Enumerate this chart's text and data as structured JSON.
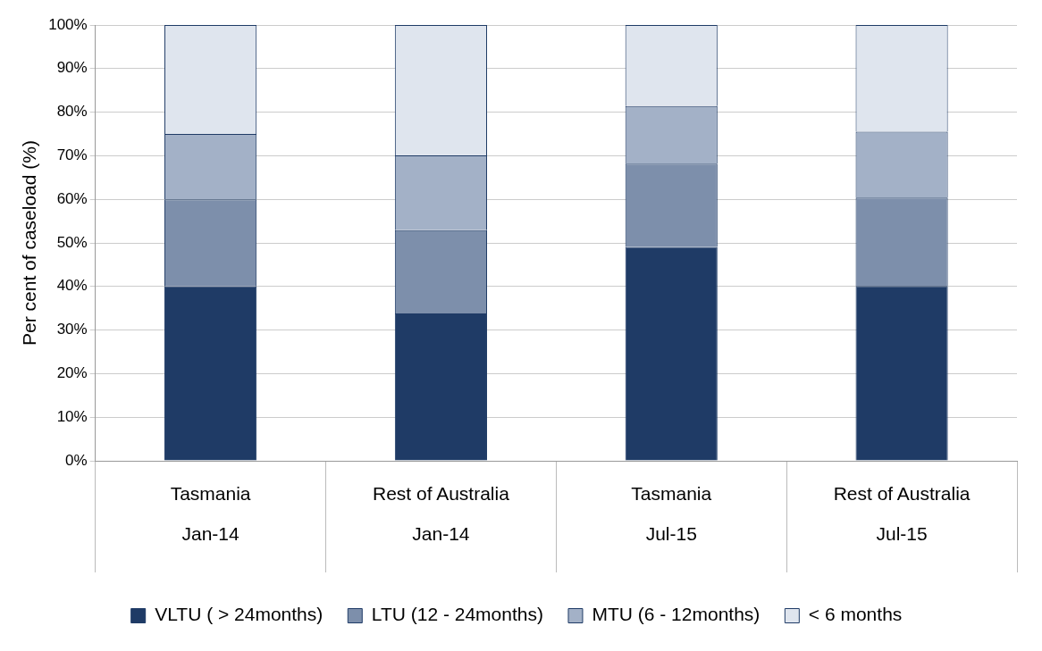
{
  "chart_data": {
    "type": "bar",
    "stacked": true,
    "ylabel": "Per cent of caseload (%)",
    "categories": [
      "Tasmania\nJan-14",
      "Rest of Australia\nJan-14",
      "Tasmania\nJul-15",
      "Rest of Australia\nJul-15"
    ],
    "series": [
      {
        "name": "VLTU ( > 24months)",
        "color": "#1f3b66",
        "values": [
          40,
          33.8,
          49.1,
          40.1
        ]
      },
      {
        "name": "LTU (12 - 24months)",
        "color": "#7d8fab",
        "values": [
          20,
          19.1,
          19.1,
          20.3
        ]
      },
      {
        "name": "MTU (6 - 12months)",
        "color": "#a3b1c7",
        "values": [
          15,
          17.2,
          13.2,
          15.1
        ]
      },
      {
        "name": "< 6 months",
        "color": "#dfe5ee",
        "values": [
          25,
          29.9,
          18.6,
          24.5
        ]
      }
    ],
    "ylim": [
      0,
      100
    ],
    "yticks": [
      {
        "value": 0,
        "label": "0%"
      },
      {
        "value": 10,
        "label": "10%"
      },
      {
        "value": 20,
        "label": "20%"
      },
      {
        "value": 30,
        "label": "30%"
      },
      {
        "value": 40,
        "label": "40%"
      },
      {
        "value": 50,
        "label": "50%"
      },
      {
        "value": 60,
        "label": "60%"
      },
      {
        "value": 70,
        "label": "70%"
      },
      {
        "value": 80,
        "label": "80%"
      },
      {
        "value": 90,
        "label": "90%"
      },
      {
        "value": 100,
        "label": "100%"
      }
    ],
    "grid": "y",
    "legend": "bottom"
  }
}
